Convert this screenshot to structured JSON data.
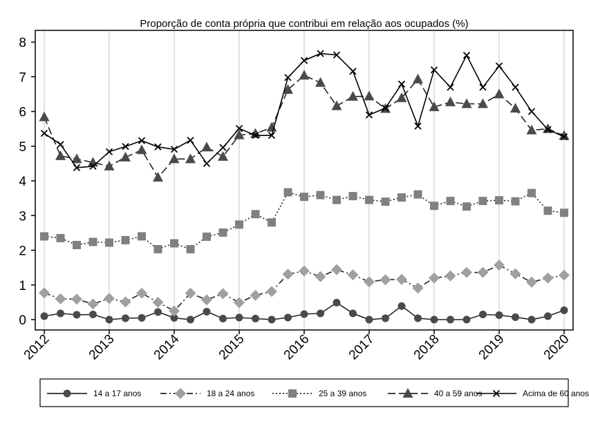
{
  "chart_data": {
    "type": "line",
    "title": "Proporção de conta própria que contribui em relação aos ocupados (%)",
    "xlabel": "",
    "ylabel": "",
    "x_ticks": [
      "2012",
      "2013",
      "2014",
      "2015",
      "2016",
      "2017",
      "2018",
      "2019",
      "2020"
    ],
    "x_tick_values": [
      2012,
      2013,
      2014,
      2015,
      2016,
      2017,
      2018,
      2019,
      2020
    ],
    "y_ticks": [
      "0",
      "1",
      "2",
      "3",
      "4",
      "5",
      "6",
      "7",
      "8"
    ],
    "ylim": [
      0,
      8
    ],
    "xlim": [
      2012,
      2020
    ],
    "grid": "vertical lines at years",
    "legend_position": "bottom",
    "x": [
      2012.0,
      2012.25,
      2012.5,
      2012.75,
      2013.0,
      2013.25,
      2013.5,
      2013.75,
      2014.0,
      2014.25,
      2014.5,
      2014.75,
      2015.0,
      2015.25,
      2015.5,
      2015.75,
      2016.0,
      2016.25,
      2016.5,
      2016.75,
      2017.0,
      2017.25,
      2017.5,
      2017.75,
      2018.0,
      2018.25,
      2018.5,
      2018.75,
      2019.0,
      2019.25,
      2019.5,
      2019.75,
      2020.0
    ],
    "series": [
      {
        "name": "14 a 17 anos",
        "marker": "circle",
        "color": "#4a4a4a",
        "dash": "solid",
        "values": [
          0.1,
          0.18,
          0.14,
          0.15,
          0.0,
          0.04,
          0.05,
          0.22,
          0.05,
          0.0,
          0.23,
          0.03,
          0.06,
          0.03,
          0.0,
          0.06,
          0.16,
          0.18,
          0.49,
          0.18,
          0.0,
          0.04,
          0.39,
          0.04,
          0.0,
          0.0,
          0.0,
          0.15,
          0.13,
          0.07,
          0.0,
          0.1,
          0.27
        ]
      },
      {
        "name": "18 a 24 anos",
        "marker": "diamond",
        "color": "#a0a0a0",
        "dash": "dashdot",
        "values": [
          0.77,
          0.6,
          0.59,
          0.45,
          0.61,
          0.51,
          0.76,
          0.5,
          0.25,
          0.76,
          0.57,
          0.75,
          0.49,
          0.7,
          0.81,
          1.31,
          1.4,
          1.24,
          1.44,
          1.29,
          1.09,
          1.15,
          1.16,
          0.91,
          1.2,
          1.26,
          1.36,
          1.36,
          1.57,
          1.32,
          1.08,
          1.2,
          1.28
        ]
      },
      {
        "name": "25 a 39 anos",
        "marker": "square",
        "color": "#808080",
        "dash": "dotted",
        "values": [
          2.4,
          2.35,
          2.15,
          2.24,
          2.22,
          2.29,
          2.4,
          2.03,
          2.2,
          2.03,
          2.39,
          2.51,
          2.74,
          3.04,
          2.8,
          3.67,
          3.54,
          3.59,
          3.45,
          3.56,
          3.45,
          3.4,
          3.52,
          3.61,
          3.28,
          3.42,
          3.26,
          3.42,
          3.44,
          3.41,
          3.65,
          3.14,
          3.08
        ]
      },
      {
        "name": "40 a 59 anos",
        "marker": "triangle",
        "color": "#4a4a4a",
        "dash": "longdash",
        "values": [
          5.84,
          4.72,
          4.63,
          4.53,
          4.42,
          4.68,
          4.89,
          4.1,
          4.63,
          4.63,
          4.97,
          4.7,
          5.32,
          5.36,
          5.54,
          6.63,
          7.04,
          6.83,
          6.16,
          6.43,
          6.44,
          6.08,
          6.39,
          6.93,
          6.13,
          6.27,
          6.22,
          6.22,
          6.5,
          6.09,
          5.46,
          5.5,
          5.3
        ]
      },
      {
        "name": "Acima de 60 anos",
        "marker": "x",
        "color": "#000000",
        "dash": "solid",
        "values": [
          5.37,
          5.05,
          4.38,
          4.42,
          4.84,
          4.99,
          5.16,
          4.98,
          4.91,
          5.17,
          4.5,
          4.96,
          5.51,
          5.31,
          5.31,
          6.98,
          7.47,
          7.67,
          7.63,
          7.16,
          5.9,
          6.1,
          6.79,
          5.58,
          7.2,
          6.7,
          7.62,
          6.7,
          7.31,
          6.7,
          6.0,
          5.48,
          5.27
        ]
      }
    ]
  }
}
